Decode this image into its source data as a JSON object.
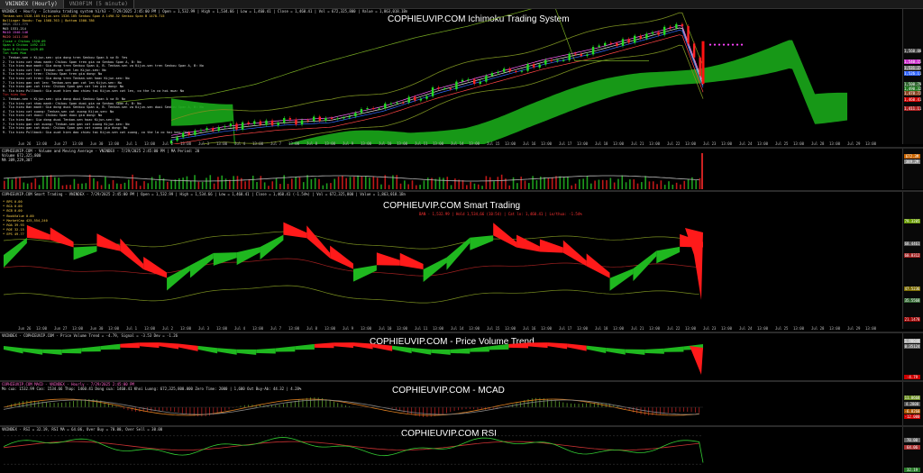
{
  "window": {
    "tabs": [
      "VNINDEX (Hourly)",
      "VN30F1M (5 minute)"
    ]
  },
  "ichimoku": {
    "watermark": "COPHIEUVIP.COM Ichimoku Trading System",
    "header": "VNINDEX - Hourly - Ichimoku trading system h1/h3 - 7/29/2025 2:45:00 PM | Open = 1,532.99 | High = 1,534.66 | Low = 1,460.41 | Close = 1,460.41 | Vol = 672,325,800 | Value = 1,863,018.1Bn",
    "legend": [
      {
        "text": "Tenkan-sen 1528.105   Kijun-sen 1526.105   Senkou Span A 1490.32   Senkou Span B 1478.715",
        "color": "#ffd24a"
      },
      {
        "text": "Bollinger Bands: Top 1568.763 | Bottom 1500.786",
        "color": "#ffd24a"
      },
      {
        "text": "BBQS 1521.775",
        "color": "#9a9a9a"
      },
      {
        "text": "MA5 1531.214",
        "color": "#e0e0e0"
      },
      {
        "text": "MA10 1540.146",
        "color": "#ff66ff"
      },
      {
        "text": "MA20 1411.106",
        "color": "#ff6666"
      },
      {
        "text": "Close > Chikou 1520.09",
        "color": "#33ff33"
      },
      {
        "text": "Span A Chikou 1492.133",
        "color": "#33ff33"
      },
      {
        "text": "Span B Chikou 1429.89",
        "color": "#33ff33"
      },
      {
        "text": "Tin hieu Mua",
        "color": "#33ff33"
      },
      {
        "text": "1. Tenkan-sen > Kijun-sen: gia dong tren Senkou Span A va B: Yes",
        "color": "#e0e0e0"
      },
      {
        "text": "2. Tin hieu cat nhau manh: Chikou Span tren gia va Senkou Span A, B: No",
        "color": "#e0e0e0"
      },
      {
        "text": "3. Tin hieu mua manh: Gia dong tren Senkou Span A, B. Tenkan-sen va Kijun-sen tren Senkou Span A, B: No",
        "color": "#e0e0e0"
      },
      {
        "text": "4. Tin hieu cat len: Tenkan-sen cat len Kijun-sen: No",
        "color": "#e0e0e0"
      },
      {
        "text": "5. Tin hieu cat tren: Chikou Span tren gia dong: No",
        "color": "#e0e0e0"
      },
      {
        "text": "6. Tin hieu cat tren: Gia dong tren Tenkan-sen hoac Kijun-sen: No",
        "color": "#e0e0e0"
      },
      {
        "text": "7. Tin hieu gan cat len: Tenkan-sen gan cat len Kijun-sen: No",
        "color": "#e0e0e0"
      },
      {
        "text": "8. Tin hieu gan cat tren: Chikou Span gan cat len gia dong: No",
        "color": "#e0e0e0"
      },
      {
        "text": "9. Tin hieu Pullback: Gia xuat hien dao chieu tai Kijun-sen cat len, co the la co hoi mua: No",
        "color": "#e0e0e0"
      },
      {
        "text": "Tin hieu Ban",
        "color": "#ff3333"
      },
      {
        "text": "1. Tenkan-sen < Kijun-sen: gia dong duoi Senkou Span A va B: No",
        "color": "#e0e0e0"
      },
      {
        "text": "2. Tin hieu cat nhau manh: Chikou Span duoi gia va Senkou Span A, B: No",
        "color": "#e0e0e0"
      },
      {
        "text": "3. Tin hieu Ban manh: Gia dong duoi Senkou Span A, B. Tenkan-sen va Kijun-sen duoi Senkou Span A, B: No",
        "color": "#e0e0e0"
      },
      {
        "text": "4. Tin hieu cat xuong: Tenkan-sen cat xuong Kijun-sen: No",
        "color": "#e0e0e0"
      },
      {
        "text": "5. Tin hieu cat duoi: Chikou Span duoi gia dong: No",
        "color": "#e0e0e0"
      },
      {
        "text": "6. Tin hieu Ban: Gia dong duoi Tenkan-sen hoac Kijun-sen: No",
        "color": "#e0e0e0"
      },
      {
        "text": "7. Tin hieu gan cat xuong: Tenkan-sen gan cat xuong Kijun-sen: No",
        "color": "#e0e0e0"
      },
      {
        "text": "8. Tin hieu gan cat duoi: Chikou Span gan cat xuong gia dong: No",
        "color": "#e0e0e0"
      },
      {
        "text": "9. Tin hieu Pullback: Gia xuat hien dao chieu tai Kijun-sen cat xuong, co the la co hoi ban: Yes",
        "color": "#e0e0e0"
      }
    ],
    "price_tags": [
      {
        "label": "1,560.00",
        "color": "#444444"
      },
      {
        "label": "1,540.15",
        "color": "#cc33cc"
      },
      {
        "label": "1,531.21",
        "color": "#777777"
      },
      {
        "label": "1,526.11",
        "color": "#3366ff"
      },
      {
        "label": "1,500.79",
        "color": "#336633"
      },
      {
        "label": "1,490.32",
        "color": "#227722"
      },
      {
        "label": "1,478.72",
        "color": "#884422"
      },
      {
        "label": "1,460.41",
        "color": "#cc0000"
      },
      {
        "label": "1,411.11",
        "color": "#aa2222"
      }
    ]
  },
  "volume": {
    "header": "COPHIEUVIP.COM - Volume and Moving Average - VNINDEX - 7/29/2025 2:45:00 PM | MA Period: 20",
    "sub1": "Volume 672,325,800",
    "sub2": "MA 389,229,307",
    "tags": [
      {
        "label": "672.3M",
        "color": "#cc6600"
      },
      {
        "label": "389.2M",
        "color": "#888888"
      }
    ]
  },
  "smart": {
    "watermark": "COPHIEUVIP.COM Smart Trading",
    "header": "COPHIEUVIP.COM Smart Trading - VNINDEX - 7/29/2025 2:45:00 PM | Open = 1,532.99 | High = 1,534.66 | Low = 1,460.41 | Close = 1,460.41 (-1.54%) | Vol = 672,325,800 | Value = 1,863,018.1Bn",
    "legend": [
      {
        "text": "* BPS   0.00",
        "color": "#ffd24a"
      },
      {
        "text": "* BCA   0.00",
        "color": "#ffd24a"
      },
      {
        "text": "* BCB   0.00",
        "color": "#ffd24a"
      },
      {
        "text": "* BookValue   0.00",
        "color": "#ffd24a"
      },
      {
        "text": "* MarketCap   425,554,240",
        "color": "#ffd24a"
      },
      {
        "text": "* ROA   39.93",
        "color": "#ffd24a"
      },
      {
        "text": "* ROE   32.15",
        "color": "#ffd24a"
      },
      {
        "text": "* EPS   49.77",
        "color": "#ffd24a"
      }
    ],
    "signal": "BAN - 1,532.99 | Hold 1,534,66 (10:54) | Cat lo: 1,460.41 | Lo/thua: -1.54%",
    "tags": [
      {
        "label": "79.3205",
        "color": "#669900"
      },
      {
        "label": "68.4461",
        "color": "#555555"
      },
      {
        "label": "60.8312",
        "color": "#a02020"
      },
      {
        "label": "47.5236",
        "color": "#7a6a00"
      },
      {
        "label": "35.5568",
        "color": "#336633"
      },
      {
        "label": "21.1478",
        "color": "#990000"
      }
    ]
  },
  "pvt": {
    "watermark": "COPHIEUVIP.COM - Price Volume Trend",
    "header": "VNINDEX - COPHIEUVIP.COM - Price Volume Trend = -4.79,   Signal = -3.53   Dev = -1.26",
    "tags": [
      {
        "label": "1.90048",
        "color": "#aaaaaa"
      },
      {
        "label": "0.35124",
        "color": "#666666"
      },
      {
        "label": "-4.79",
        "color": "#cc0000"
      }
    ]
  },
  "macd": {
    "watermark": "COPHIEUVIP.COM - MCAD",
    "header": "COPHIEUVIP.COM MACD - VNINDEX - Hourly - 7/29/2025 2:45:00 PM",
    "sub": "Mo cua: 1532.99  Cao: 1534.66  Thap: 1460.41  Dong cua: 1460.41  Khoi Luong: 672,325,800.000  Zero Time: 2000 | 1,600  Out Buy-Ab: 44.32 | 4.28%",
    "tags": [
      {
        "label": "11.0668",
        "color": "#6b8e23"
      },
      {
        "label": "4.2808",
        "color": "#555555"
      },
      {
        "label": "-6.8260",
        "color": "#aa5500"
      },
      {
        "label": "-12.000",
        "color": "#cc0000"
      }
    ]
  },
  "rsi": {
    "watermark": "COPHIEUVIP.COM RSI",
    "header": "VNINDEX - RSI = 32.19,  RSI MA = 64.06,  Over Buy = 70.00,  Over Sell = 30.00",
    "tags": [
      {
        "label": "70.00",
        "color": "#666666"
      },
      {
        "label": "64.06",
        "color": "#aa3333"
      },
      {
        "label": "32.19",
        "color": "#2a7a2a"
      }
    ]
  },
  "date_axis": [
    "Jun 26",
    "13:00",
    "Jun 27",
    "13:00",
    "Jun 30",
    "13:00",
    "Jul 1",
    "13:00",
    "Jul 2",
    "13:00",
    "Jul 3",
    "13:00",
    "Jul 4",
    "13:00",
    "Jul 7",
    "13:00",
    "Jul 8",
    "13:00",
    "Jul 9",
    "13:00",
    "Jul 10",
    "13:00",
    "Jul 11",
    "13:00",
    "Jul 14",
    "13:00",
    "Jul 15",
    "13:00",
    "Jul 16",
    "13:00",
    "Jul 17",
    "13:00",
    "Jul 18",
    "13:00",
    "Jul 21",
    "13:00",
    "Jul 22",
    "13:00",
    "Jul 23",
    "13:00",
    "Jul 24",
    "13:00",
    "Jul 25",
    "13:00",
    "Jul 28",
    "13:00",
    "Jul 29",
    "13:00"
  ],
  "chart_data": {
    "type": "line",
    "symbol": "VNINDEX",
    "timeframe": "Hourly",
    "last_bar": {
      "date": "7/29/2025 2:45:00 PM",
      "open": 1532.99,
      "high": 1534.66,
      "low": 1460.41,
      "close": 1460.41,
      "volume": 672325800
    },
    "price_range": [
      1400,
      1600
    ],
    "price": {
      "start": 1370,
      "end": 1460.41,
      "peak": 1560
    },
    "ichimoku": {
      "tenkan": 1528.105,
      "kijun": 1526.105,
      "span_a": 1490.32,
      "span_b": 1478.715
    },
    "bollinger": {
      "top": 1568.763,
      "bottom": 1500.786
    },
    "ma": {
      "MA5": 1531.214,
      "MA10": 1540.146,
      "MA20": 1411.106
    },
    "volume_ma": 389229307,
    "pvt": {
      "value": -4.79,
      "signal": -3.53
    },
    "macd": {
      "range": [
        -12,
        12
      ]
    },
    "rsi": {
      "value": 32.19,
      "ma": 64.06,
      "overbought": 70,
      "oversold": 30,
      "range": [
        20,
        80
      ]
    }
  }
}
